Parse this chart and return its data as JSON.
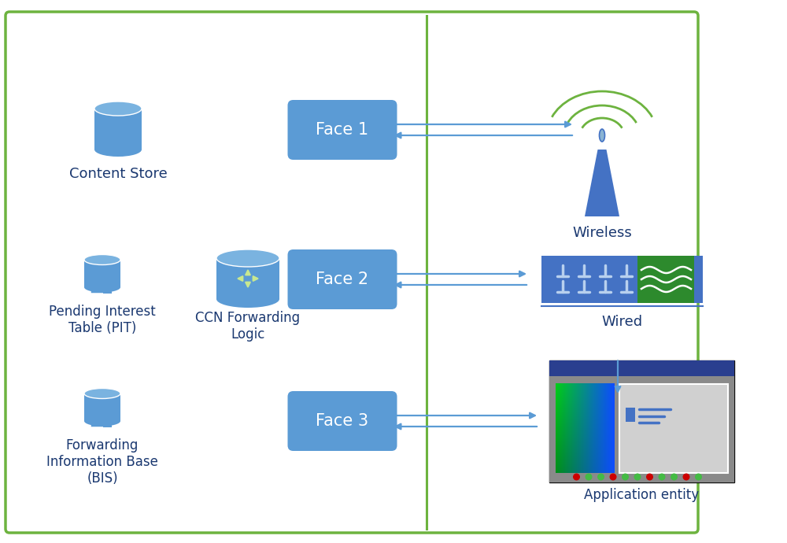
{
  "bg_color": "#ffffff",
  "border_color": "#6db33f",
  "text_color_dark": "#1a3870",
  "face_box_color": "#5b9bd5",
  "face_text_color": "#ffffff",
  "db_color": "#5b9bd5",
  "db_color_top": "#7ab3e0",
  "arrow_color": "#5b9bd5",
  "wireless_color": "#4472c4",
  "wireless_mast_color": "#4472c4",
  "wireless_signal_color": "#6db33f",
  "wired_color": "#2e75b6",
  "wired_green": "#2d8a2d",
  "app_title_color": "#2a3f6f",
  "app_body_color": "#808080",
  "app_inner_color": "#a0a0a0",
  "labels": {
    "content_store": "Content Store",
    "pit": "Pending Interest\nTable (PIT)",
    "ccn": "CCN Forwarding\nLogic",
    "fib": "Forwarding\nInformation Base\n(BIS)",
    "face1": "Face 1",
    "face2": "Face 2",
    "face3": "Face 3",
    "wireless": "Wireless",
    "wired": "Wired",
    "app": "Application entity"
  },
  "figsize": [
    10.0,
    6.9
  ],
  "dpi": 100
}
